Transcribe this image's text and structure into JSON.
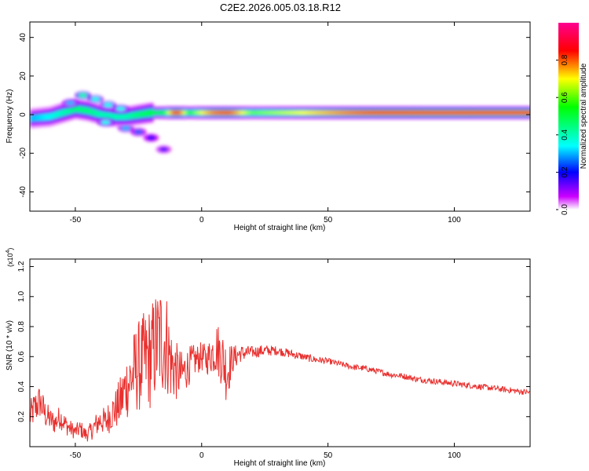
{
  "figure": {
    "title": "C2E2.2026.005.03.18.R12"
  },
  "chart_data": [
    {
      "type": "heatmap",
      "title": "C2E2.2026.005.03.18.R12",
      "xlabel": "Height of straight line (km)",
      "ylabel": "Frequency (Hz)",
      "xlim": [
        -68,
        130
      ],
      "ylim": [
        -50,
        48
      ],
      "x_ticks": [
        -50,
        0,
        50,
        100
      ],
      "y_ticks": [
        -40,
        -20,
        0,
        20,
        40
      ],
      "colorbar": {
        "label": "Normalized spectral amplitude",
        "range": [
          0,
          1
        ],
        "ticks": [
          "0.0",
          "0.2",
          "0.4",
          "0.6",
          "0.8"
        ],
        "colormap": [
          "#ffffff",
          "#cc00ff",
          "#0000ff",
          "#00ffff",
          "#00ff00",
          "#ffff00",
          "#ff0000",
          "#ff0090"
        ]
      },
      "ridge": {
        "x": [
          -68,
          -60,
          -55,
          -50,
          -45,
          -40,
          -35,
          -30,
          -25,
          -20,
          -15,
          -10,
          -5,
          0,
          5,
          10,
          20,
          30,
          40,
          50,
          60,
          70,
          80,
          90,
          100,
          110,
          120,
          130
        ],
        "freq_center": [
          -2,
          -1,
          1,
          3,
          2,
          0,
          -1,
          -1,
          0,
          1,
          1,
          1,
          1,
          1,
          1,
          1,
          1,
          1,
          1,
          1,
          1,
          1,
          1,
          1,
          1,
          1,
          1,
          1
        ],
        "amplitude": [
          0.3,
          0.35,
          0.4,
          0.45,
          0.45,
          0.4,
          0.4,
          0.4,
          0.45,
          0.5,
          0.55,
          0.9,
          0.55,
          0.7,
          0.8,
          0.85,
          0.6,
          0.65,
          0.7,
          0.75,
          0.8,
          0.85,
          0.85,
          0.9,
          0.9,
          0.85,
          0.85,
          0.85
        ]
      },
      "blobs": [
        {
          "x": -47,
          "freq": 10,
          "amp": 0.4
        },
        {
          "x": -42,
          "freq": 8,
          "amp": 0.35
        },
        {
          "x": -37,
          "freq": 5,
          "amp": 0.35
        },
        {
          "x": -32,
          "freq": 3,
          "amp": 0.35
        },
        {
          "x": -52,
          "freq": 6,
          "amp": 0.3
        },
        {
          "x": -38,
          "freq": -4,
          "amp": 0.35
        },
        {
          "x": -30,
          "freq": -7,
          "amp": 0.3
        },
        {
          "x": -25,
          "freq": -9,
          "amp": 0.25
        },
        {
          "x": -20,
          "freq": -12,
          "amp": 0.2
        },
        {
          "x": -15,
          "freq": -18,
          "amp": 0.15
        }
      ]
    },
    {
      "type": "line",
      "xlabel": "Height of straight line (km)",
      "ylabel": "SNR (10 * v/v)",
      "y_multiplier": "(x10^4)",
      "xlim": [
        -68,
        130
      ],
      "ylim": [
        0,
        1.25
      ],
      "x_ticks": [
        -50,
        0,
        50,
        100
      ],
      "y_ticks": [
        0.2,
        0.4,
        0.6,
        0.8,
        1.0,
        1.2
      ],
      "y_tick_labels": [
        "0.2",
        "0.4",
        "0.6",
        "0.8",
        "1.0",
        "1.2"
      ],
      "series": [
        {
          "color": "#e8302e",
          "x": [
            -68,
            -66,
            -64,
            -62,
            -60,
            -58,
            -56,
            -54,
            -52,
            -50,
            -48,
            -46,
            -44,
            -42,
            -40,
            -38,
            -36,
            -34,
            -32,
            -30,
            -28,
            -26,
            -24,
            -22,
            -20,
            -18,
            -16,
            -14,
            -12,
            -10,
            -8,
            -6,
            -4,
            -2,
            0,
            2,
            4,
            6,
            8,
            10,
            12,
            15,
            20,
            25,
            30,
            35,
            40,
            45,
            50,
            55,
            60,
            65,
            70,
            75,
            80,
            85,
            90,
            95,
            100,
            105,
            110,
            115,
            120,
            125,
            130
          ],
          "y": [
            0.2,
            0.26,
            0.3,
            0.22,
            0.18,
            0.16,
            0.2,
            0.15,
            0.12,
            0.1,
            0.12,
            0.08,
            0.1,
            0.14,
            0.18,
            0.16,
            0.22,
            0.25,
            0.3,
            0.4,
            0.45,
            0.52,
            0.55,
            0.58,
            0.6,
            0.68,
            0.72,
            0.7,
            0.55,
            0.5,
            0.48,
            0.52,
            0.56,
            0.58,
            0.6,
            0.58,
            0.62,
            0.66,
            0.6,
            0.5,
            0.58,
            0.62,
            0.63,
            0.64,
            0.64,
            0.62,
            0.6,
            0.58,
            0.57,
            0.55,
            0.53,
            0.52,
            0.5,
            0.48,
            0.47,
            0.45,
            0.44,
            0.43,
            0.42,
            0.41,
            0.4,
            0.39,
            0.38,
            0.37,
            0.36
          ],
          "noise": [
            0.1,
            0.12,
            0.12,
            0.1,
            0.08,
            0.08,
            0.08,
            0.07,
            0.06,
            0.05,
            0.06,
            0.05,
            0.06,
            0.08,
            0.09,
            0.1,
            0.12,
            0.14,
            0.18,
            0.22,
            0.26,
            0.3,
            0.32,
            0.34,
            0.36,
            0.38,
            0.4,
            0.36,
            0.26,
            0.2,
            0.16,
            0.14,
            0.12,
            0.1,
            0.1,
            0.1,
            0.14,
            0.18,
            0.2,
            0.22,
            0.1,
            0.06,
            0.04,
            0.04,
            0.03,
            0.03,
            0.025,
            0.025,
            0.02,
            0.02,
            0.02,
            0.02,
            0.02,
            0.02,
            0.02,
            0.02,
            0.02,
            0.02,
            0.02,
            0.02,
            0.02,
            0.02,
            0.02,
            0.02,
            0.02
          ]
        }
      ]
    }
  ]
}
